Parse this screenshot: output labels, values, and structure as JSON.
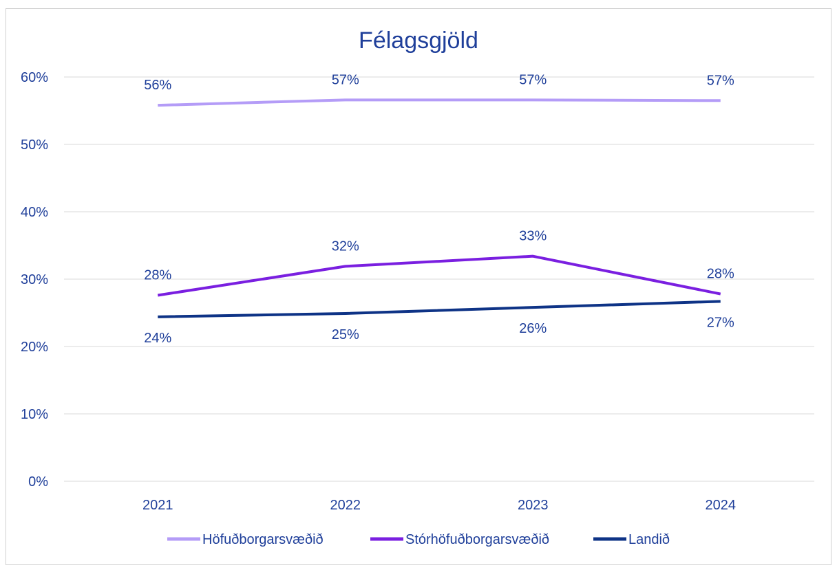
{
  "chart_data": {
    "type": "line",
    "title": "Félagsgjöld",
    "xlabel": "",
    "ylabel": "",
    "categories": [
      "2021",
      "2022",
      "2023",
      "2024"
    ],
    "ylim": [
      0,
      60
    ],
    "yticks": [
      0,
      10,
      20,
      30,
      40,
      50,
      60
    ],
    "ytick_labels": [
      "0%",
      "10%",
      "20%",
      "30%",
      "40%",
      "50%",
      "60%"
    ],
    "grid": true,
    "legend_position": "bottom",
    "text_color": "#1f3f9a",
    "series": [
      {
        "name": "Höfuðborgarsvæðið",
        "color": "#b49cf7",
        "values": [
          55.8,
          56.6,
          56.6,
          56.5
        ],
        "labels": [
          "56%",
          "57%",
          "57%",
          "57%"
        ],
        "label_pos": "above"
      },
      {
        "name": "Stórhöfuðborgarsvæðið",
        "color": "#7a1fe0",
        "values": [
          27.6,
          31.9,
          33.4,
          27.8
        ],
        "labels": [
          "28%",
          "32%",
          "33%",
          "28%"
        ],
        "label_pos": "above"
      },
      {
        "name": "Landið",
        "color": "#0e3386",
        "values": [
          24.4,
          24.9,
          25.8,
          26.7
        ],
        "labels": [
          "24%",
          "25%",
          "26%",
          "27%"
        ],
        "label_pos": "below"
      }
    ]
  }
}
